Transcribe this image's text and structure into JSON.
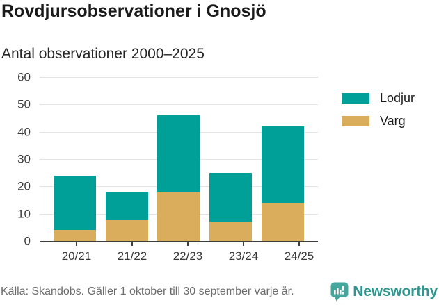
{
  "title": "Rovdjursobservationer i Gnosjö",
  "subtitle": "Antal observationer 2000–2025",
  "legend": {
    "items": [
      {
        "label": "Lodjur",
        "color": "#00a099"
      },
      {
        "label": "Varg",
        "color": "#d9ad5b"
      }
    ]
  },
  "footer": {
    "source": "Källa: Skandobs. Gäller 1 oktober till 30 september varje år.",
    "brand": "Newsworthy",
    "brand_icon": "newsworthy-speech-bubble-bar-chart-icon"
  },
  "colors": {
    "lodjur": "#00a099",
    "varg": "#d9ad5b",
    "axis": "#3e3e3e",
    "gridline": "#e3e3e3",
    "brand_teal": "#2f968e",
    "brand_icon_teal": "#44a79e",
    "source_gray": "#6d6d6d"
  },
  "chart_data": {
    "type": "bar",
    "stacked": true,
    "title": "Rovdjursobservationer i Gnosjö",
    "subtitle": "Antal observationer 2000–2025",
    "categories": [
      "20/21",
      "21/22",
      "22/23",
      "23/24",
      "24/25"
    ],
    "series": [
      {
        "name": "Varg",
        "color": "#d9ad5b",
        "values": [
          4,
          8,
          18,
          7,
          14
        ]
      },
      {
        "name": "Lodjur",
        "color": "#00a099",
        "values": [
          20,
          10,
          28,
          18,
          28
        ]
      }
    ],
    "totals": [
      24,
      18,
      46,
      25,
      42
    ],
    "xlabel": "",
    "ylabel": "",
    "ylim": [
      0,
      60
    ],
    "yticks": [
      0,
      10,
      20,
      30,
      40,
      50,
      60
    ],
    "grid": "horizontal",
    "legend_position": "top-right"
  }
}
